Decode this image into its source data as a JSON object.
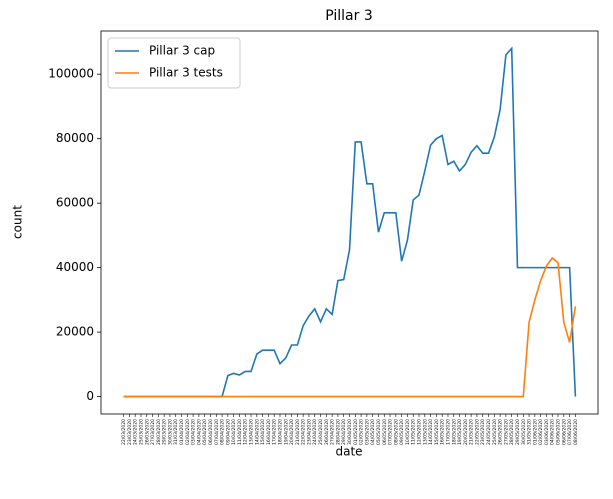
{
  "chart_data": {
    "type": "line",
    "title": "Pillar 3",
    "xlabel": "date",
    "ylabel": "count",
    "categories": [
      "22/03/2020",
      "23/03/2020",
      "24/03/2020",
      "25/03/2020",
      "26/03/2020",
      "27/03/2020",
      "28/03/2020",
      "29/03/2020",
      "30/03/2020",
      "31/03/2020",
      "01/04/2020",
      "02/04/2020",
      "03/04/2020",
      "04/04/2020",
      "05/04/2020",
      "06/04/2020",
      "07/04/2020",
      "08/04/2020",
      "09/04/2020",
      "10/04/2020",
      "11/04/2020",
      "12/04/2020",
      "13/04/2020",
      "14/04/2020",
      "15/04/2020",
      "16/04/2020",
      "17/04/2020",
      "18/04/2020",
      "19/04/2020",
      "20/04/2020",
      "21/04/2020",
      "22/04/2020",
      "23/04/2020",
      "24/04/2020",
      "25/04/2020",
      "26/04/2020",
      "27/04/2020",
      "28/04/2020",
      "29/04/2020",
      "30/04/2020",
      "01/05/2020",
      "02/05/2020",
      "03/05/2020",
      "04/05/2020",
      "05/05/2020",
      "06/05/2020",
      "07/05/2020",
      "08/05/2020",
      "09/05/2020",
      "10/05/2020",
      "11/05/2020",
      "12/05/2020",
      "13/05/2020",
      "14/05/2020",
      "15/05/2020",
      "16/05/2020",
      "17/05/2020",
      "18/05/2020",
      "19/05/2020",
      "20/05/2020",
      "21/05/2020",
      "22/05/2020",
      "23/05/2020",
      "24/05/2020",
      "25/05/2020",
      "26/05/2020",
      "27/05/2020",
      "28/05/2020",
      "29/05/2020",
      "30/05/2020",
      "31/05/2020",
      "01/06/2020",
      "02/06/2020",
      "03/06/2020",
      "04/06/2020",
      "05/06/2020",
      "06/06/2020",
      "07/06/2020",
      "08/06/2020"
    ],
    "series": [
      {
        "name": "Pillar 3 cap",
        "color": "#1f77b4",
        "values": [
          0,
          0,
          0,
          0,
          0,
          0,
          0,
          0,
          0,
          0,
          0,
          0,
          0,
          0,
          0,
          0,
          0,
          0,
          6500,
          7200,
          6700,
          7800,
          7800,
          13200,
          14400,
          14400,
          14400,
          10200,
          12000,
          16000,
          16000,
          22000,
          25000,
          27200,
          23200,
          27200,
          25500,
          36000,
          36300,
          45500,
          79000,
          79000,
          66000,
          66000,
          51000,
          57000,
          57000,
          57000,
          42000,
          48500,
          61000,
          62500,
          70000,
          78000,
          80000,
          81000,
          72000,
          73000,
          70000,
          72000,
          75800,
          77800,
          75500,
          75500,
          80500,
          89000,
          106000,
          108000,
          40000,
          40000,
          40000,
          40000,
          40000,
          40000,
          40000,
          40000,
          40000,
          40000,
          0
        ]
      },
      {
        "name": "Pillar 3 tests",
        "color": "#ff7f0e",
        "values": [
          0,
          0,
          0,
          0,
          0,
          0,
          0,
          0,
          0,
          0,
          0,
          0,
          0,
          0,
          0,
          0,
          0,
          0,
          0,
          0,
          0,
          0,
          0,
          0,
          0,
          0,
          0,
          0,
          0,
          0,
          0,
          0,
          0,
          0,
          0,
          0,
          0,
          0,
          0,
          0,
          0,
          0,
          0,
          0,
          0,
          0,
          0,
          0,
          0,
          0,
          0,
          0,
          0,
          0,
          0,
          0,
          0,
          0,
          0,
          0,
          0,
          0,
          0,
          0,
          0,
          0,
          0,
          0,
          0,
          0,
          23000,
          30000,
          36000,
          40500,
          43000,
          41500,
          23000,
          16800,
          28000
        ]
      }
    ],
    "ylim": [
      -5400,
      113400
    ],
    "yticks": [
      0,
      20000,
      40000,
      60000,
      80000,
      100000
    ],
    "grid": false,
    "legend": "upper left"
  }
}
